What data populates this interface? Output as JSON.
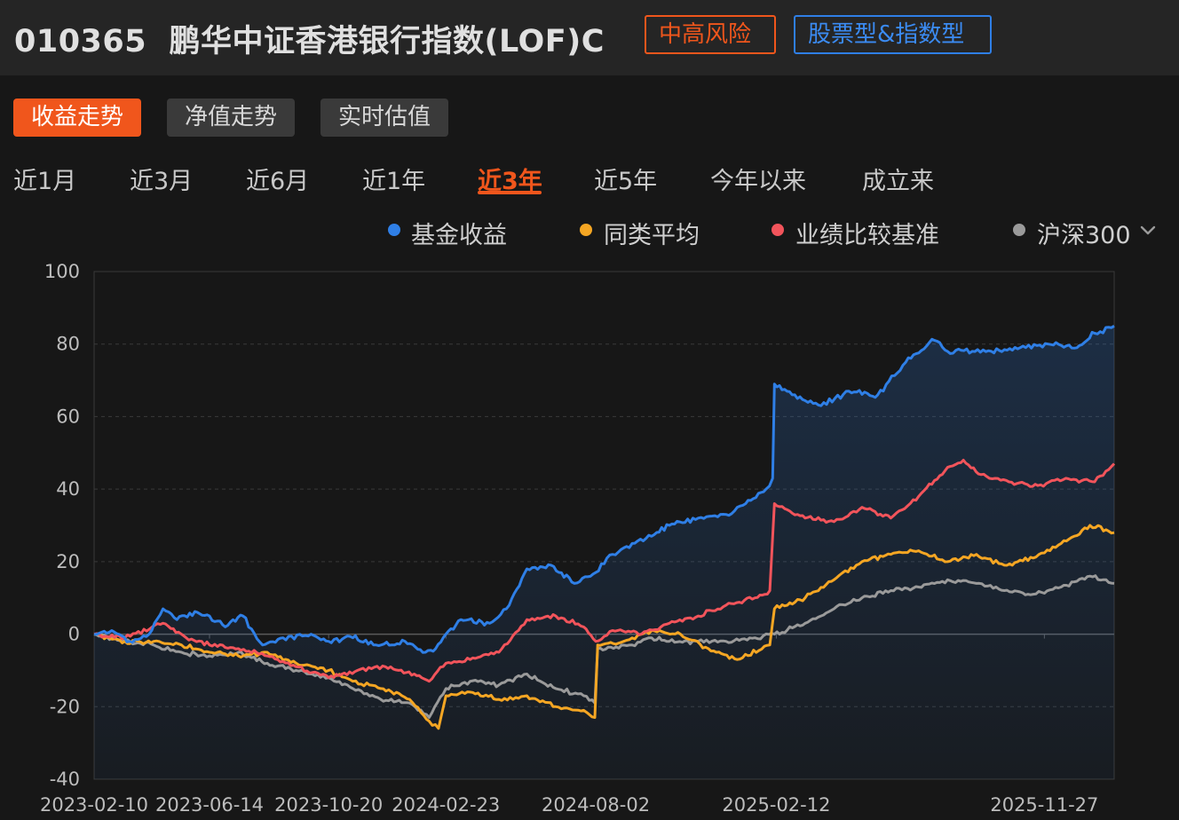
{
  "header": {
    "fund_code": "010365",
    "fund_name": "鹏华中证香港银行指数(LOF)C",
    "risk_badge": "中高风险",
    "type_badge": "股票型&指数型"
  },
  "view_tabs": [
    {
      "label": "收益走势",
      "active": true
    },
    {
      "label": "净值走势",
      "active": false
    },
    {
      "label": "实时估值",
      "active": false
    }
  ],
  "range_tabs": [
    {
      "label": "近1月",
      "active": false
    },
    {
      "label": "近3月",
      "active": false
    },
    {
      "label": "近6月",
      "active": false
    },
    {
      "label": "近1年",
      "active": false
    },
    {
      "label": "近3年",
      "active": true
    },
    {
      "label": "近5年",
      "active": false
    },
    {
      "label": "今年以来",
      "active": false
    },
    {
      "label": "成立来",
      "active": false
    }
  ],
  "legend": [
    {
      "label": "基金收益",
      "color": "#2f7fe6"
    },
    {
      "label": "同类平均",
      "color": "#f5a623"
    },
    {
      "label": "业绩比较基准",
      "color": "#f2545b"
    },
    {
      "label": "沪深300",
      "color": "#9a9a9a",
      "icon": "chevron-down-icon"
    }
  ],
  "chart_data": {
    "type": "line",
    "ylim": [
      -40,
      100
    ],
    "yticks": [
      "100",
      "80",
      "60",
      "40",
      "20",
      "0",
      "-20",
      "-40"
    ],
    "xticks": [
      "2023-02-10",
      "2023-06-14",
      "2023-10-20",
      "2024-02-23",
      "2024-08-02",
      "2025-02-12",
      "2025-11-27"
    ],
    "x_range": [
      "2023-02-10",
      "2026-02-10"
    ],
    "series": [
      {
        "name": "基金收益",
        "color": "#2f7fe6",
        "area": true,
        "points": [
          [
            "2023-02-10",
            0
          ],
          [
            "2023-03-01",
            1
          ],
          [
            "2023-03-20",
            -2
          ],
          [
            "2023-04-10",
            0
          ],
          [
            "2023-04-25",
            7
          ],
          [
            "2023-05-10",
            4
          ],
          [
            "2023-06-01",
            6
          ],
          [
            "2023-06-14",
            5
          ],
          [
            "2023-07-01",
            2
          ],
          [
            "2023-07-20",
            5
          ],
          [
            "2023-08-10",
            -3
          ],
          [
            "2023-09-01",
            -1
          ],
          [
            "2023-10-01",
            0
          ],
          [
            "2023-10-20",
            -2
          ],
          [
            "2023-11-15",
            -1
          ],
          [
            "2023-12-10",
            -3
          ],
          [
            "2024-01-10",
            -2
          ],
          [
            "2024-02-01",
            -5
          ],
          [
            "2024-02-12",
            -4
          ],
          [
            "2024-02-23",
            0
          ],
          [
            "2024-03-10",
            4
          ],
          [
            "2024-04-10",
            3
          ],
          [
            "2024-05-01",
            8
          ],
          [
            "2024-05-20",
            18
          ],
          [
            "2024-06-15",
            19
          ],
          [
            "2024-07-10",
            14
          ],
          [
            "2024-08-02",
            17
          ],
          [
            "2024-08-20",
            22
          ],
          [
            "2024-09-10",
            25
          ],
          [
            "2024-10-01",
            27
          ],
          [
            "2024-10-20",
            30
          ],
          [
            "2024-11-20",
            32
          ],
          [
            "2024-12-20",
            33
          ],
          [
            "2025-01-10",
            36
          ],
          [
            "2025-02-01",
            40
          ],
          [
            "2025-02-08",
            43
          ],
          [
            "2025-02-10",
            69
          ],
          [
            "2025-03-01",
            66
          ],
          [
            "2025-04-01",
            63
          ],
          [
            "2025-05-01",
            67
          ],
          [
            "2025-06-01",
            66
          ],
          [
            "2025-07-01",
            75
          ],
          [
            "2025-08-01",
            81
          ],
          [
            "2025-08-15",
            78
          ],
          [
            "2025-10-01",
            78
          ],
          [
            "2025-11-01",
            79
          ],
          [
            "2025-12-01",
            80
          ],
          [
            "2026-01-01",
            79
          ],
          [
            "2026-01-20",
            83
          ],
          [
            "2026-02-10",
            85
          ]
        ]
      },
      {
        "name": "同类平均",
        "color": "#f5a623",
        "area": false,
        "points": [
          [
            "2023-02-10",
            0
          ],
          [
            "2023-03-15",
            -2
          ],
          [
            "2023-04-15",
            -2
          ],
          [
            "2023-05-15",
            -3
          ],
          [
            "2023-06-14",
            -5
          ],
          [
            "2023-07-15",
            -6
          ],
          [
            "2023-08-15",
            -5
          ],
          [
            "2023-09-15",
            -8
          ],
          [
            "2023-10-20",
            -10
          ],
          [
            "2023-11-15",
            -13
          ],
          [
            "2023-12-15",
            -15
          ],
          [
            "2024-01-15",
            -18
          ],
          [
            "2024-02-05",
            -24
          ],
          [
            "2024-02-15",
            -26
          ],
          [
            "2024-02-23",
            -17
          ],
          [
            "2024-03-20",
            -16
          ],
          [
            "2024-04-20",
            -18
          ],
          [
            "2024-05-20",
            -17
          ],
          [
            "2024-06-20",
            -20
          ],
          [
            "2024-07-20",
            -21
          ],
          [
            "2024-08-01",
            -23
          ],
          [
            "2024-08-04",
            -3
          ],
          [
            "2024-09-01",
            -2
          ],
          [
            "2024-10-01",
            1
          ],
          [
            "2024-11-01",
            0
          ],
          [
            "2024-12-01",
            -4
          ],
          [
            "2025-01-01",
            -7
          ],
          [
            "2025-02-05",
            -3
          ],
          [
            "2025-02-10",
            7
          ],
          [
            "2025-03-15",
            10
          ],
          [
            "2025-04-15",
            15
          ],
          [
            "2025-05-15",
            20
          ],
          [
            "2025-06-15",
            22
          ],
          [
            "2025-07-15",
            23
          ],
          [
            "2025-08-15",
            20
          ],
          [
            "2025-09-15",
            22
          ],
          [
            "2025-10-15",
            19
          ],
          [
            "2025-11-15",
            21
          ],
          [
            "2025-12-15",
            25
          ],
          [
            "2026-01-15",
            30
          ],
          [
            "2026-02-10",
            28
          ]
        ]
      },
      {
        "name": "业绩比较基准",
        "color": "#f2545b",
        "area": false,
        "points": [
          [
            "2023-02-10",
            0
          ],
          [
            "2023-03-15",
            -1
          ],
          [
            "2023-04-25",
            3
          ],
          [
            "2023-05-20",
            -1
          ],
          [
            "2023-06-14",
            -3
          ],
          [
            "2023-07-15",
            -4
          ],
          [
            "2023-08-15",
            -6
          ],
          [
            "2023-09-15",
            -9
          ],
          [
            "2023-10-20",
            -12
          ],
          [
            "2023-11-20",
            -10
          ],
          [
            "2023-12-20",
            -9
          ],
          [
            "2024-01-20",
            -11
          ],
          [
            "2024-02-05",
            -13
          ],
          [
            "2024-02-23",
            -8
          ],
          [
            "2024-03-20",
            -7
          ],
          [
            "2024-04-20",
            -5
          ],
          [
            "2024-05-20",
            4
          ],
          [
            "2024-06-20",
            5
          ],
          [
            "2024-07-20",
            2
          ],
          [
            "2024-08-02",
            -2
          ],
          [
            "2024-08-20",
            1
          ],
          [
            "2024-09-20",
            0
          ],
          [
            "2024-10-20",
            3
          ],
          [
            "2024-11-20",
            5
          ],
          [
            "2024-12-20",
            8
          ],
          [
            "2025-01-20",
            10
          ],
          [
            "2025-02-05",
            12
          ],
          [
            "2025-02-10",
            36
          ],
          [
            "2025-03-15",
            32
          ],
          [
            "2025-04-15",
            31
          ],
          [
            "2025-05-15",
            35
          ],
          [
            "2025-06-15",
            32
          ],
          [
            "2025-07-15",
            38
          ],
          [
            "2025-08-15",
            46
          ],
          [
            "2025-09-01",
            48
          ],
          [
            "2025-09-20",
            44
          ],
          [
            "2025-10-20",
            42
          ],
          [
            "2025-11-20",
            41
          ],
          [
            "2025-12-20",
            43
          ],
          [
            "2026-01-20",
            42
          ],
          [
            "2026-02-10",
            47
          ]
        ]
      },
      {
        "name": "沪深300",
        "color": "#9a9a9a",
        "area": false,
        "points": [
          [
            "2023-02-10",
            0
          ],
          [
            "2023-03-15",
            -2
          ],
          [
            "2023-04-15",
            -3
          ],
          [
            "2023-05-15",
            -5
          ],
          [
            "2023-06-14",
            -6
          ],
          [
            "2023-07-15",
            -5
          ],
          [
            "2023-08-15",
            -8
          ],
          [
            "2023-09-15",
            -10
          ],
          [
            "2023-10-20",
            -12
          ],
          [
            "2023-11-15",
            -15
          ],
          [
            "2023-12-15",
            -18
          ],
          [
            "2024-01-15",
            -19
          ],
          [
            "2024-02-05",
            -23
          ],
          [
            "2024-02-23",
            -15
          ],
          [
            "2024-03-20",
            -13
          ],
          [
            "2024-04-20",
            -14
          ],
          [
            "2024-05-20",
            -11
          ],
          [
            "2024-06-20",
            -15
          ],
          [
            "2024-07-20",
            -17
          ],
          [
            "2024-08-01",
            -19
          ],
          [
            "2024-08-04",
            -4
          ],
          [
            "2024-09-10",
            -3
          ],
          [
            "2024-10-01",
            -1
          ],
          [
            "2024-10-20",
            -2
          ],
          [
            "2024-11-20",
            -2
          ],
          [
            "2024-12-20",
            -2
          ],
          [
            "2025-01-20",
            -1
          ],
          [
            "2025-02-10",
            0
          ],
          [
            "2025-03-15",
            3
          ],
          [
            "2025-04-15",
            7
          ],
          [
            "2025-05-15",
            10
          ],
          [
            "2025-06-15",
            12
          ],
          [
            "2025-07-15",
            13
          ],
          [
            "2025-08-15",
            15
          ],
          [
            "2025-09-15",
            14
          ],
          [
            "2025-10-15",
            12
          ],
          [
            "2025-11-15",
            11
          ],
          [
            "2025-12-15",
            13
          ],
          [
            "2026-01-15",
            16
          ],
          [
            "2026-02-10",
            14
          ]
        ]
      }
    ]
  }
}
